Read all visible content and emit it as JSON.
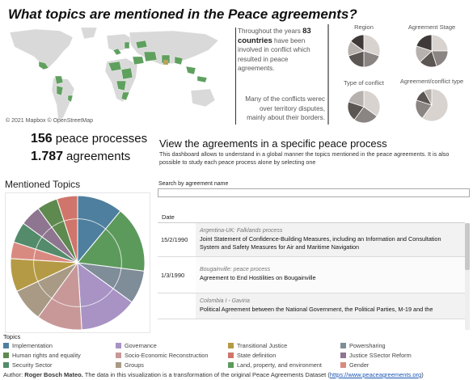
{
  "header": {
    "title": "What topics are mentioned in the Peace agreements?",
    "home_icon": "home-icon"
  },
  "map": {
    "credit": "© 2021 Mapbox  © OpenStreetMap",
    "conflict_color": "#5fa05f",
    "land_color": "#d9d9d9"
  },
  "intro": {
    "pre": "Throughout the years",
    "count": "83",
    "bold_word": "countries",
    "post": "have been involved in conflict which resulted in peace agreements.",
    "conflict_note": "Many of the conflicts werec over territory disputes, mainly about their borders."
  },
  "mini_pies": [
    {
      "label": "Region",
      "values": [
        30,
        20,
        20,
        15,
        15
      ]
    },
    {
      "label": "Agreement Stage",
      "values": [
        25,
        20,
        18,
        17,
        20
      ]
    },
    {
      "label": "Type of conflict",
      "values": [
        35,
        25,
        20,
        20
      ]
    },
    {
      "label": "Agreement/conflict type",
      "values": [
        60,
        20,
        12,
        8
      ]
    }
  ],
  "mini_pie_colors": [
    "#d8d3cf",
    "#8a8483",
    "#5b5553",
    "#b7b1ae",
    "#3f3a39"
  ],
  "stats": {
    "processes_value": "156",
    "processes_label": "peace processes",
    "agreements_value": "1.787",
    "agreements_label": "agreements"
  },
  "view": {
    "heading": "View the agreements in a specific peace process",
    "description": "This dashboard allows to understand in a global manner the topics mentioned in the peace agreements. It is also possible to study each peace process alone by selecting one"
  },
  "topics_title": "Mentioned Topics",
  "chart_data": {
    "type": "pie",
    "title": "Mentioned Topics",
    "slices": [
      {
        "label": "Implementation",
        "value": 11,
        "color": "#4e7f9e"
      },
      {
        "label": "Land, property, and environment",
        "value": 16,
        "color": "#5c9a5c"
      },
      {
        "label": "Powersharing",
        "value": 8,
        "color": "#7f8d99"
      },
      {
        "label": "Governance",
        "value": 14,
        "color": "#a893c4"
      },
      {
        "label": "Socio-Economic Reconstruction",
        "value": 11,
        "color": "#c89898"
      },
      {
        "label": "Groups",
        "value": 8,
        "color": "#a89a85"
      },
      {
        "label": "Transitional Justice",
        "value": 8,
        "color": "#b59a45"
      },
      {
        "label": "Gender",
        "value": 4,
        "color": "#d98a80"
      },
      {
        "label": "Security Sector",
        "value": 5,
        "color": "#548b6b"
      },
      {
        "label": "Justice SSector Reform",
        "value": 5,
        "color": "#8e7590"
      },
      {
        "label": "Human rights and equality",
        "value": 5,
        "color": "#5f8a4f"
      },
      {
        "label": "State definition",
        "value": 5,
        "color": "#d0756b"
      }
    ]
  },
  "search": {
    "label": "Search by agreement name",
    "value": ""
  },
  "table": {
    "date_header": "Date",
    "rows": [
      {
        "date": "15/2/1990",
        "process": "Argentina-UK: Falklands process",
        "name": "Joint Statement of Confidence-Building Measures, including an Information and Consultation System and Safety Measures for Air and Maritime Navigation"
      },
      {
        "date": "1/3/1990",
        "process": "Bougainville: peace process",
        "name": "Agreement to End Hostilities on Bougainville"
      },
      {
        "date": "",
        "process": "Colombia I - Gaviria",
        "name": "Political Agreement between the National Government, the Political Parties, M-19 and the"
      }
    ]
  },
  "legend": {
    "title": "Topics",
    "items": [
      {
        "label": "Implementation",
        "color": "#4e7f9e"
      },
      {
        "label": "Governance",
        "color": "#a893c4"
      },
      {
        "label": "Transitional Justice",
        "color": "#b59a45"
      },
      {
        "label": "Powersharing",
        "color": "#7f8d99"
      },
      {
        "label": "Human rights and equality",
        "color": "#5f8a4f"
      },
      {
        "label": "Socio-Economic Reconstruction",
        "color": "#c89898"
      },
      {
        "label": "State definition",
        "color": "#d0756b"
      },
      {
        "label": "Justice SSector Reform",
        "color": "#8e7590"
      },
      {
        "label": "Security Sector",
        "color": "#548b6b"
      },
      {
        "label": "Groups",
        "color": "#a89a85"
      },
      {
        "label": "Land, property, and environment",
        "color": "#5c9a5c"
      },
      {
        "label": "Gender",
        "color": "#d98a80"
      }
    ]
  },
  "footer": {
    "author_label": "Author:",
    "author": "Roger Bosch Mateo.",
    "text": "The data in this visualization is a transformation of the original Peace Agreements Dataset (",
    "link": "https://www.peaceagreements.org",
    "close": ")"
  }
}
